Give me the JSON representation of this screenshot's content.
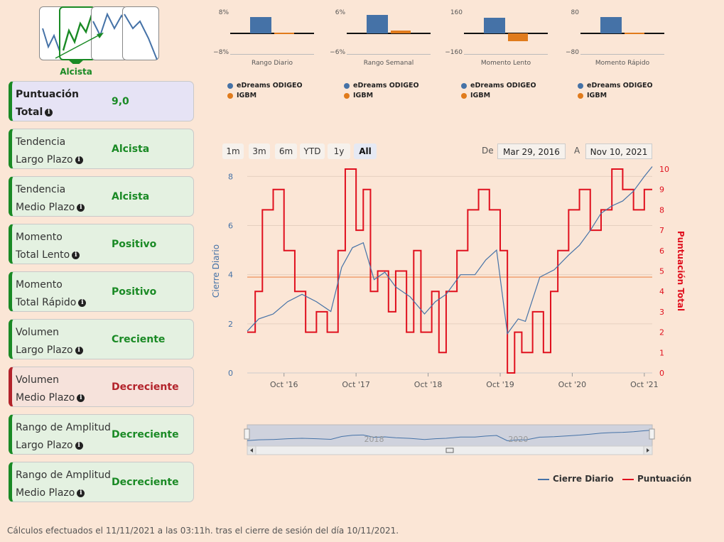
{
  "trend": {
    "label": "Alcista"
  },
  "cards": [
    {
      "label1": "Puntuación",
      "label2": "Total",
      "value": "9,0",
      "kind": "total"
    },
    {
      "label1": "Tendencia",
      "label2": "Largo Plazo",
      "value": "Alcista",
      "kind": "pos"
    },
    {
      "label1": "Tendencia",
      "label2": "Medio Plazo",
      "value": "Alcista",
      "kind": "pos"
    },
    {
      "label1": "Momento",
      "label2": "Total Lento",
      "value": "Positivo",
      "kind": "pos"
    },
    {
      "label1": "Momento",
      "label2": "Total Rápido",
      "value": "Positivo",
      "kind": "pos"
    },
    {
      "label1": "Volumen",
      "label2": "Largo Plazo",
      "value": "Creciente",
      "kind": "pos"
    },
    {
      "label1": "Volumen",
      "label2": "Medio Plazo",
      "value": "Decreciente",
      "kind": "neg"
    },
    {
      "label1": "Rango de Amplitud",
      "label2": "Largo Plazo",
      "value": "Decreciente",
      "kind": "pos"
    },
    {
      "label1": "Rango de Amplitud",
      "label2": "Medio Plazo",
      "value": "Decreciente",
      "kind": "pos"
    }
  ],
  "mini_charts": [
    {
      "title": "Rango Diario",
      "ymax": "8%",
      "ymin": "−8%",
      "range": 8,
      "odigeo": 6.5,
      "igbm": 0.3
    },
    {
      "title": "Rango Semanal",
      "ymax": "6%",
      "ymin": "−6%",
      "range": 6,
      "odigeo": 5.5,
      "igbm": 0.9
    },
    {
      "title": "Momento Lento",
      "ymax": "160",
      "ymin": "−160",
      "range": 160,
      "odigeo": 125,
      "igbm": -60
    },
    {
      "title": "Momento Rápido",
      "ymax": "80",
      "ymin": "−80",
      "range": 80,
      "odigeo": 65,
      "igbm": 2
    }
  ],
  "mini_legend": {
    "a": "eDreams ODIGEO",
    "b": "IGBM"
  },
  "colors": {
    "odigeo": "#4572a7",
    "igbm": "#e07b1c",
    "score": "#e0101e",
    "green": "#1a8a25",
    "red": "#b3232b"
  },
  "range_buttons": [
    "1m",
    "3m",
    "6m",
    "YTD",
    "1y",
    "All"
  ],
  "range_active": "All",
  "date_from_label": "De",
  "date_from": "Mar 29, 2016",
  "date_to_label": "A",
  "date_to": "Nov 10, 2021",
  "chart_data": {
    "type": "line",
    "x_ticks": [
      "Oct '16",
      "Oct '17",
      "Oct '18",
      "Oct '19",
      "Oct '20",
      "Oct '21"
    ],
    "x_range": [
      2016.24,
      2021.86
    ],
    "y_left_label": "Cierre Diario",
    "y_left_ticks": [
      "0",
      "2",
      "4",
      "6",
      "8"
    ],
    "y_left_range": [
      0,
      8.3
    ],
    "y_right_label": "Puntuación Total",
    "y_right_ticks": [
      "0",
      "1",
      "2",
      "3",
      "4",
      "5",
      "6",
      "7",
      "8",
      "9",
      "10"
    ],
    "y_right_range": [
      0,
      10
    ],
    "threshold_score": 4.7,
    "navigator_ticks": [
      "2018",
      "2020"
    ],
    "series": [
      {
        "name": "Cierre Diario",
        "axis": "left",
        "x": [
          2016.24,
          2016.4,
          2016.6,
          2016.8,
          2017.0,
          2017.2,
          2017.4,
          2017.55,
          2017.7,
          2017.85,
          2018.0,
          2018.15,
          2018.3,
          2018.5,
          2018.7,
          2018.85,
          2019.0,
          2019.2,
          2019.4,
          2019.55,
          2019.7,
          2019.85,
          2020.0,
          2020.1,
          2020.3,
          2020.5,
          2020.7,
          2020.85,
          2021.0,
          2021.15,
          2021.3,
          2021.45,
          2021.6,
          2021.75,
          2021.86
        ],
        "values": [
          1.7,
          2.2,
          2.4,
          2.9,
          3.2,
          2.9,
          2.5,
          4.3,
          5.1,
          5.3,
          3.8,
          4.1,
          3.5,
          3.1,
          2.4,
          2.9,
          3.2,
          4.0,
          4.0,
          4.6,
          5.0,
          1.6,
          2.2,
          2.1,
          3.9,
          4.2,
          4.8,
          5.2,
          5.8,
          6.5,
          6.8,
          7.0,
          7.4,
          8.0,
          8.4
        ]
      },
      {
        "name": "Puntuación",
        "axis": "right",
        "x": [
          2016.24,
          2016.35,
          2016.45,
          2016.6,
          2016.75,
          2016.9,
          2017.05,
          2017.2,
          2017.35,
          2017.5,
          2017.6,
          2017.75,
          2017.85,
          2017.95,
          2018.05,
          2018.2,
          2018.3,
          2018.45,
          2018.55,
          2018.65,
          2018.8,
          2018.9,
          2019.0,
          2019.15,
          2019.3,
          2019.45,
          2019.6,
          2019.75,
          2019.85,
          2019.95,
          2020.05,
          2020.2,
          2020.35,
          2020.45,
          2020.55,
          2020.7,
          2020.85,
          2021.0,
          2021.15,
          2021.3,
          2021.45,
          2021.6,
          2021.75,
          2021.86
        ],
        "values": [
          2,
          4,
          8,
          9,
          6,
          4,
          2,
          3,
          2,
          6,
          10,
          7,
          9,
          4,
          5,
          3,
          5,
          2,
          6,
          2,
          4,
          1,
          4,
          6,
          8,
          9,
          8,
          6,
          0,
          2,
          1,
          3,
          1,
          4,
          6,
          8,
          9,
          7,
          8,
          10,
          9,
          8,
          9,
          9
        ]
      }
    ]
  },
  "legend": {
    "series1": "Cierre Diario",
    "series2": "Puntuación"
  },
  "footer": "Cálculos efectuados el 11/11/2021 a las 03:11h. tras el cierre de sesión del día 10/11/2021."
}
